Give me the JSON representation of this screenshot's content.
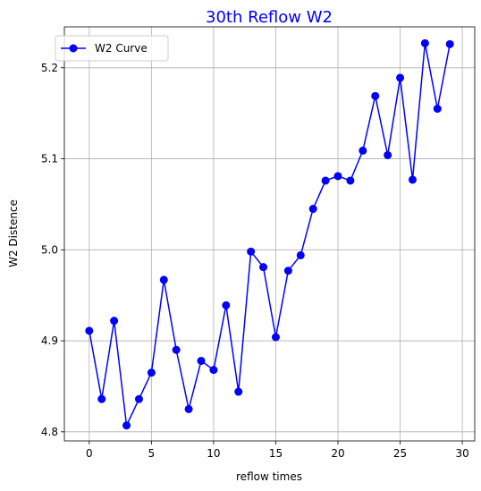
{
  "chart_data": {
    "type": "line",
    "title": "30th Reflow W2",
    "xlabel": "reflow times",
    "ylabel": "W2 Distence",
    "xlim": [
      -2,
      31
    ],
    "ylim": [
      4.79,
      5.245
    ],
    "xticks": [
      0,
      5,
      10,
      15,
      20,
      25,
      30
    ],
    "xtick_labels": [
      "0",
      "5",
      "10",
      "15",
      "20",
      "25",
      "30"
    ],
    "yticks": [
      4.8,
      4.9,
      5.0,
      5.1,
      5.2
    ],
    "ytick_labels": [
      "4.8",
      "4.9",
      "5.0",
      "5.1",
      "5.2"
    ],
    "grid": true,
    "legend_position": "top-left",
    "series": [
      {
        "name": "W2 Curve",
        "color": "#0000ff",
        "marker": "circle",
        "x": [
          0,
          1,
          2,
          3,
          4,
          5,
          6,
          7,
          8,
          9,
          10,
          11,
          12,
          13,
          14,
          15,
          16,
          17,
          18,
          19,
          20,
          21,
          22,
          23,
          24,
          25,
          26,
          27,
          28,
          29
        ],
        "y": [
          4.911,
          4.836,
          4.922,
          4.807,
          4.836,
          4.865,
          4.967,
          4.89,
          4.825,
          4.878,
          4.868,
          4.939,
          4.844,
          4.998,
          4.981,
          4.904,
          4.977,
          4.994,
          5.045,
          5.076,
          5.081,
          5.076,
          5.109,
          5.169,
          5.104,
          5.189,
          5.077,
          5.227,
          5.155,
          5.226
        ]
      }
    ]
  }
}
